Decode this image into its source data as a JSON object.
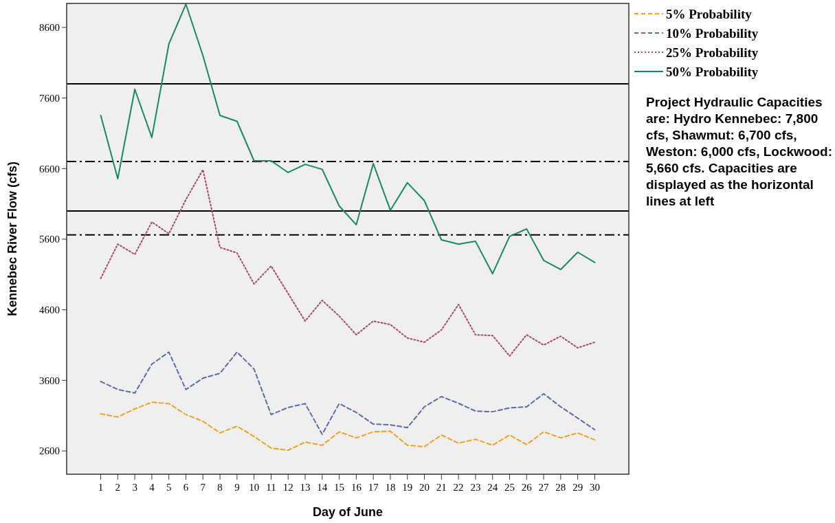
{
  "chart_data": {
    "type": "line",
    "xlabel": "Day of June",
    "ylabel": "Kennebec River Flow (cfs)",
    "x": [
      1,
      2,
      3,
      4,
      5,
      6,
      7,
      8,
      9,
      10,
      11,
      12,
      13,
      14,
      15,
      16,
      17,
      18,
      19,
      20,
      21,
      22,
      23,
      24,
      25,
      26,
      27,
      28,
      29,
      30
    ],
    "xlim": [
      -1,
      32
    ],
    "xticks": [
      1,
      2,
      3,
      4,
      5,
      6,
      7,
      8,
      9,
      10,
      11,
      12,
      13,
      14,
      15,
      16,
      17,
      18,
      19,
      20,
      21,
      22,
      23,
      24,
      25,
      26,
      27,
      28,
      29,
      30
    ],
    "ylim": [
      2270,
      8940
    ],
    "yticks": [
      2600,
      3600,
      4600,
      5600,
      6600,
      7600,
      8600
    ],
    "series": [
      {
        "name": "5% Probability",
        "color": "#f0a020",
        "line_style": "dashed",
        "values": [
          3125,
          3080,
          3195,
          3290,
          3270,
          3115,
          3020,
          2855,
          2950,
          2805,
          2640,
          2610,
          2725,
          2680,
          2870,
          2785,
          2870,
          2880,
          2680,
          2660,
          2825,
          2710,
          2765,
          2680,
          2825,
          2690,
          2870,
          2785,
          2855,
          2755
        ]
      },
      {
        "name": "10% Probability",
        "color": "#5a6aa8",
        "line_style": "dashed",
        "values": [
          3584,
          3470,
          3420,
          3830,
          4000,
          3470,
          3630,
          3700,
          4000,
          3760,
          3115,
          3215,
          3270,
          2835,
          3270,
          3145,
          2980,
          2970,
          2930,
          3225,
          3370,
          3275,
          3165,
          3155,
          3210,
          3225,
          3410,
          3225,
          3065,
          2900
        ]
      },
      {
        "name": "25% Probability",
        "color": "#a8485e",
        "line_style": "dotted",
        "values": [
          5045,
          5530,
          5385,
          5843,
          5678,
          6160,
          6585,
          5483,
          5405,
          4965,
          5220,
          4830,
          4440,
          4733,
          4510,
          4246,
          4440,
          4390,
          4200,
          4140,
          4315,
          4675,
          4245,
          4235,
          3945,
          4245,
          4100,
          4225,
          4060,
          4140
        ]
      },
      {
        "name": "50% Probability",
        "color": "#168a5c",
        "line_style": "solid",
        "values": [
          7353,
          6457,
          7723,
          7040,
          8366,
          8930,
          8200,
          7353,
          7270,
          6710,
          6710,
          6545,
          6660,
          6590,
          6070,
          5804,
          6671,
          6010,
          6400,
          6145,
          5590,
          5530,
          5570,
          5110,
          5640,
          5745,
          5300,
          5170,
          5415,
          5270
        ]
      }
    ],
    "ref_lines": [
      {
        "axis": "y",
        "value": 7800,
        "line_style": "solid",
        "color": "#000000"
      },
      {
        "axis": "y",
        "value": 6700,
        "line_style": "dashed",
        "color": "#000000"
      },
      {
        "axis": "y",
        "value": 6000,
        "line_style": "solid",
        "color": "#000000"
      },
      {
        "axis": "y",
        "value": 5660,
        "line_style": "dashed",
        "color": "#000000"
      }
    ],
    "legend": "top right",
    "grid": false,
    "annotations": [
      "Project Hydraulic Capacities are: Hydro Kennebec: 7,800 cfs, Shawmut: 6,700 cfs, Weston: 6,000 cfs, Lockwood: 5,660 cfs. Capacities are displayed as the horizontal lines at left"
    ]
  }
}
